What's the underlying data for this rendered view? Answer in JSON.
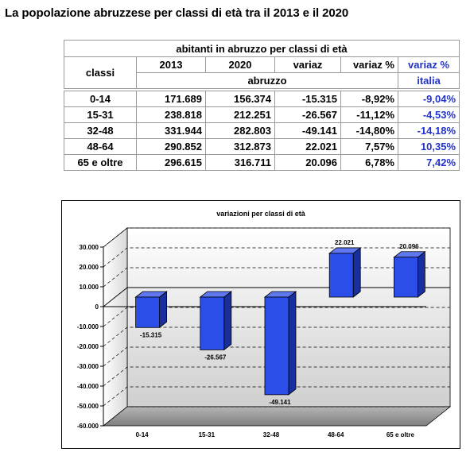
{
  "page_title": "La popolazione abruzzese per classi di età tra il 2013 e il 2020",
  "table": {
    "title": "abitanti in abruzzo per classi di età",
    "col_classi": "classi",
    "col_2013": "2013",
    "col_2020": "2020",
    "col_variaz": "variaz",
    "col_variaz_pct": "variaz %",
    "col_variaz_pct_it": "variaz %",
    "sub_abruzzo": "abruzzo",
    "sub_italia": "italia",
    "rows": [
      {
        "classe": "0-14",
        "v2013": "171.689",
        "v2020": "156.374",
        "variaz": "-15.315",
        "variaz_pct": "-8,92%",
        "variaz_pct_it": "-9,04%"
      },
      {
        "classe": "15-31",
        "v2013": "238.818",
        "v2020": "212.251",
        "variaz": "-26.567",
        "variaz_pct": "-11,12%",
        "variaz_pct_it": "-4,53%"
      },
      {
        "classe": "32-48",
        "v2013": "331.944",
        "v2020": "282.803",
        "variaz": "-49.141",
        "variaz_pct": "-14,80%",
        "variaz_pct_it": "-14,18%"
      },
      {
        "classe": "48-64",
        "v2013": "290.852",
        "v2020": "312.873",
        "variaz": "22.021",
        "variaz_pct": "7,57%",
        "variaz_pct_it": "10,35%"
      },
      {
        "classe": "65 e oltre",
        "v2013": "296.615",
        "v2020": "316.711",
        "variaz": "20.096",
        "variaz_pct": "6,78%",
        "variaz_pct_it": "7,42%"
      }
    ]
  },
  "chart_data": {
    "type": "bar",
    "title": "variazioni per classi di età",
    "categories": [
      "0-14",
      "15-31",
      "32-48",
      "48-64",
      "65 e oltre"
    ],
    "values": [
      -15315,
      -26567,
      -49141,
      22021,
      20096
    ],
    "value_labels": [
      "-15.315",
      "-26.567",
      "-49.141",
      "22.021",
      "20.096"
    ],
    "ylim": [
      -60000,
      30000
    ],
    "yticks": [
      30000,
      20000,
      10000,
      0,
      -10000,
      -20000,
      -30000,
      -40000,
      -50000,
      -60000
    ],
    "ytick_labels": [
      "30.000",
      "20.000",
      "10.000",
      "0",
      "-10.000",
      "-20.000",
      "-30.000",
      "-40.000",
      "-50.000",
      "-60.000"
    ],
    "grid": true,
    "bar_color": "#2b4de8"
  }
}
